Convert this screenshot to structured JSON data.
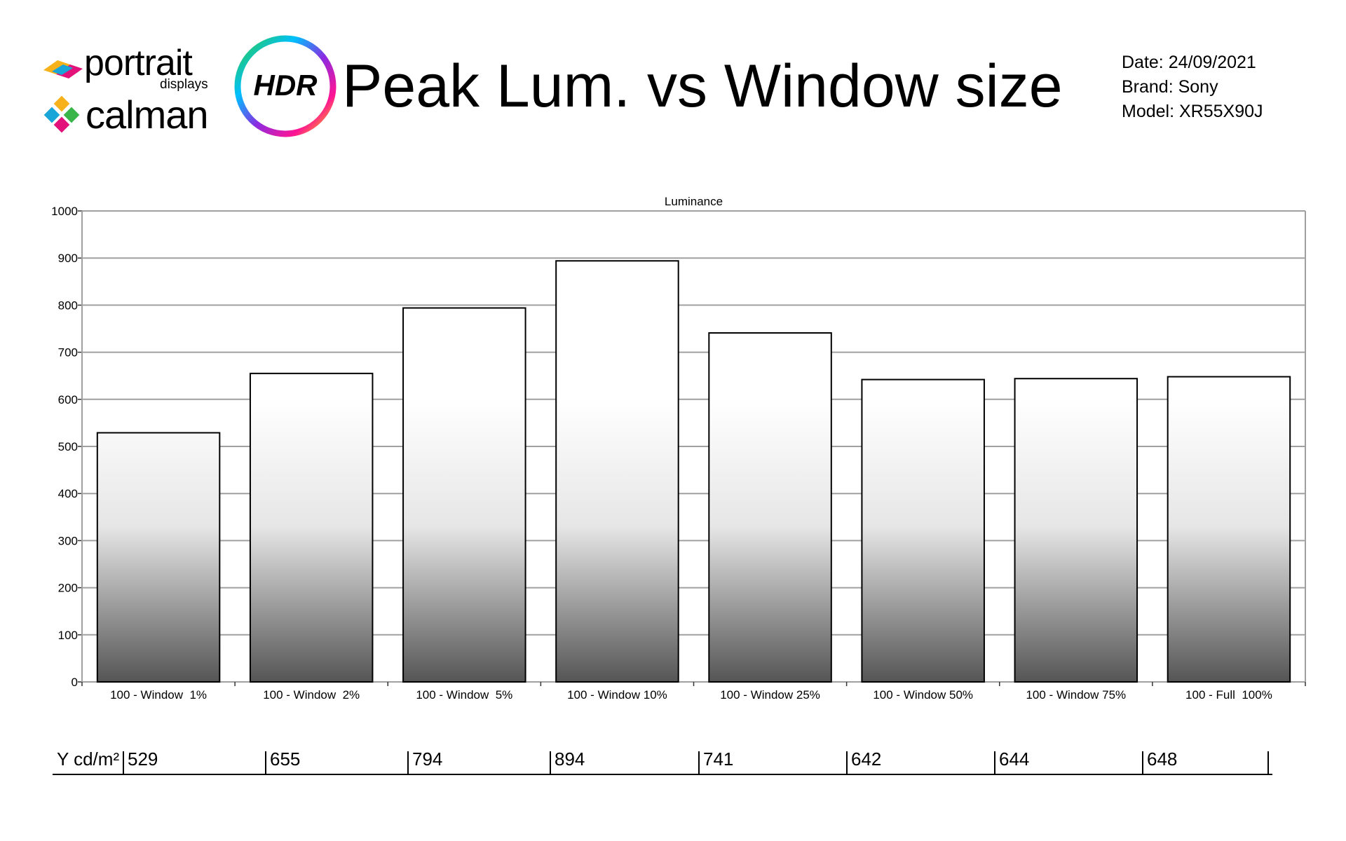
{
  "header": {
    "brand_portrait": "portrait",
    "brand_portrait_sub": "displays",
    "brand_calman": "calman",
    "hdr_badge": "HDR",
    "title": "Peak Lum. vs Window size",
    "date": "Date: 24/09/2021",
    "brand": "Brand: Sony",
    "model": "Model: XR55X90J"
  },
  "table": {
    "row_label": "Y cd/m²",
    "values": [
      "529",
      "655",
      "794",
      "894",
      "741",
      "642",
      "644",
      "648"
    ]
  },
  "chart_data": {
    "type": "bar",
    "title": "Luminance",
    "xlabel": "",
    "ylabel": "",
    "categories": [
      "100 - Window  1%",
      "100 - Window  2%",
      "100 - Window  5%",
      "100 - Window 10%",
      "100 - Window 25%",
      "100 - Window 50%",
      "100 - Window 75%",
      "100 - Full  100%"
    ],
    "values": [
      529,
      655,
      794,
      894,
      741,
      642,
      644,
      648
    ],
    "ylim": [
      0,
      1000
    ],
    "yticks": [
      0,
      100,
      200,
      300,
      400,
      500,
      600,
      700,
      800,
      900,
      1000
    ],
    "grid": true,
    "legend": "none",
    "bar_gradient": [
      "#ffffff",
      "#555555"
    ],
    "gridline_color": "#a0a0a0"
  }
}
